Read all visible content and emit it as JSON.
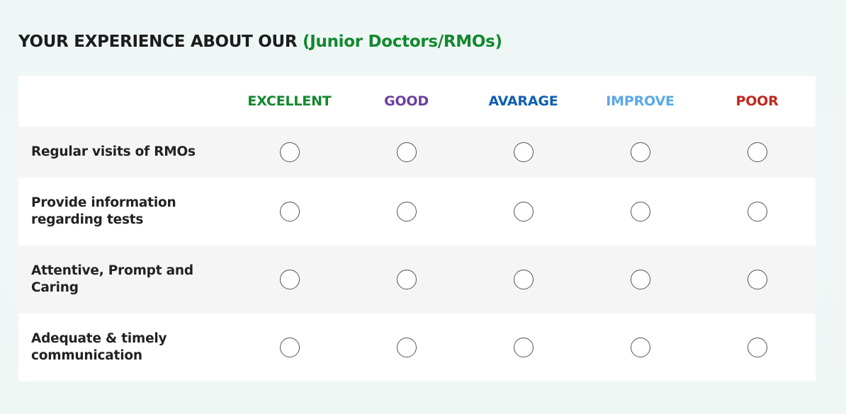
{
  "title": {
    "prefix": "YOUR EXPERIENCE ABOUT OUR",
    "highlight": "(Junior Doctors/RMOs)"
  },
  "colors": {
    "title_highlight": "#12882d",
    "title_text": "#1c1c1c"
  },
  "columns": [
    {
      "label": "EXCELLENT",
      "color": "#12882d"
    },
    {
      "label": "GOOD",
      "color": "#6b3fa0"
    },
    {
      "label": "AVARAGE",
      "color": "#0f5fb0"
    },
    {
      "label": "IMPROVE",
      "color": "#5aa9e6"
    },
    {
      "label": "POOR",
      "color": "#c0281c"
    }
  ],
  "rows": [
    {
      "label_line1": "Regular visits of RMOs",
      "label_line2": ""
    },
    {
      "label_line1": "Provide information",
      "label_line2": "regarding tests"
    },
    {
      "label_line1": "Attentive, Prompt and",
      "label_line2": "Caring"
    },
    {
      "label_line1": "Adequate & timely",
      "label_line2": "communication"
    }
  ]
}
